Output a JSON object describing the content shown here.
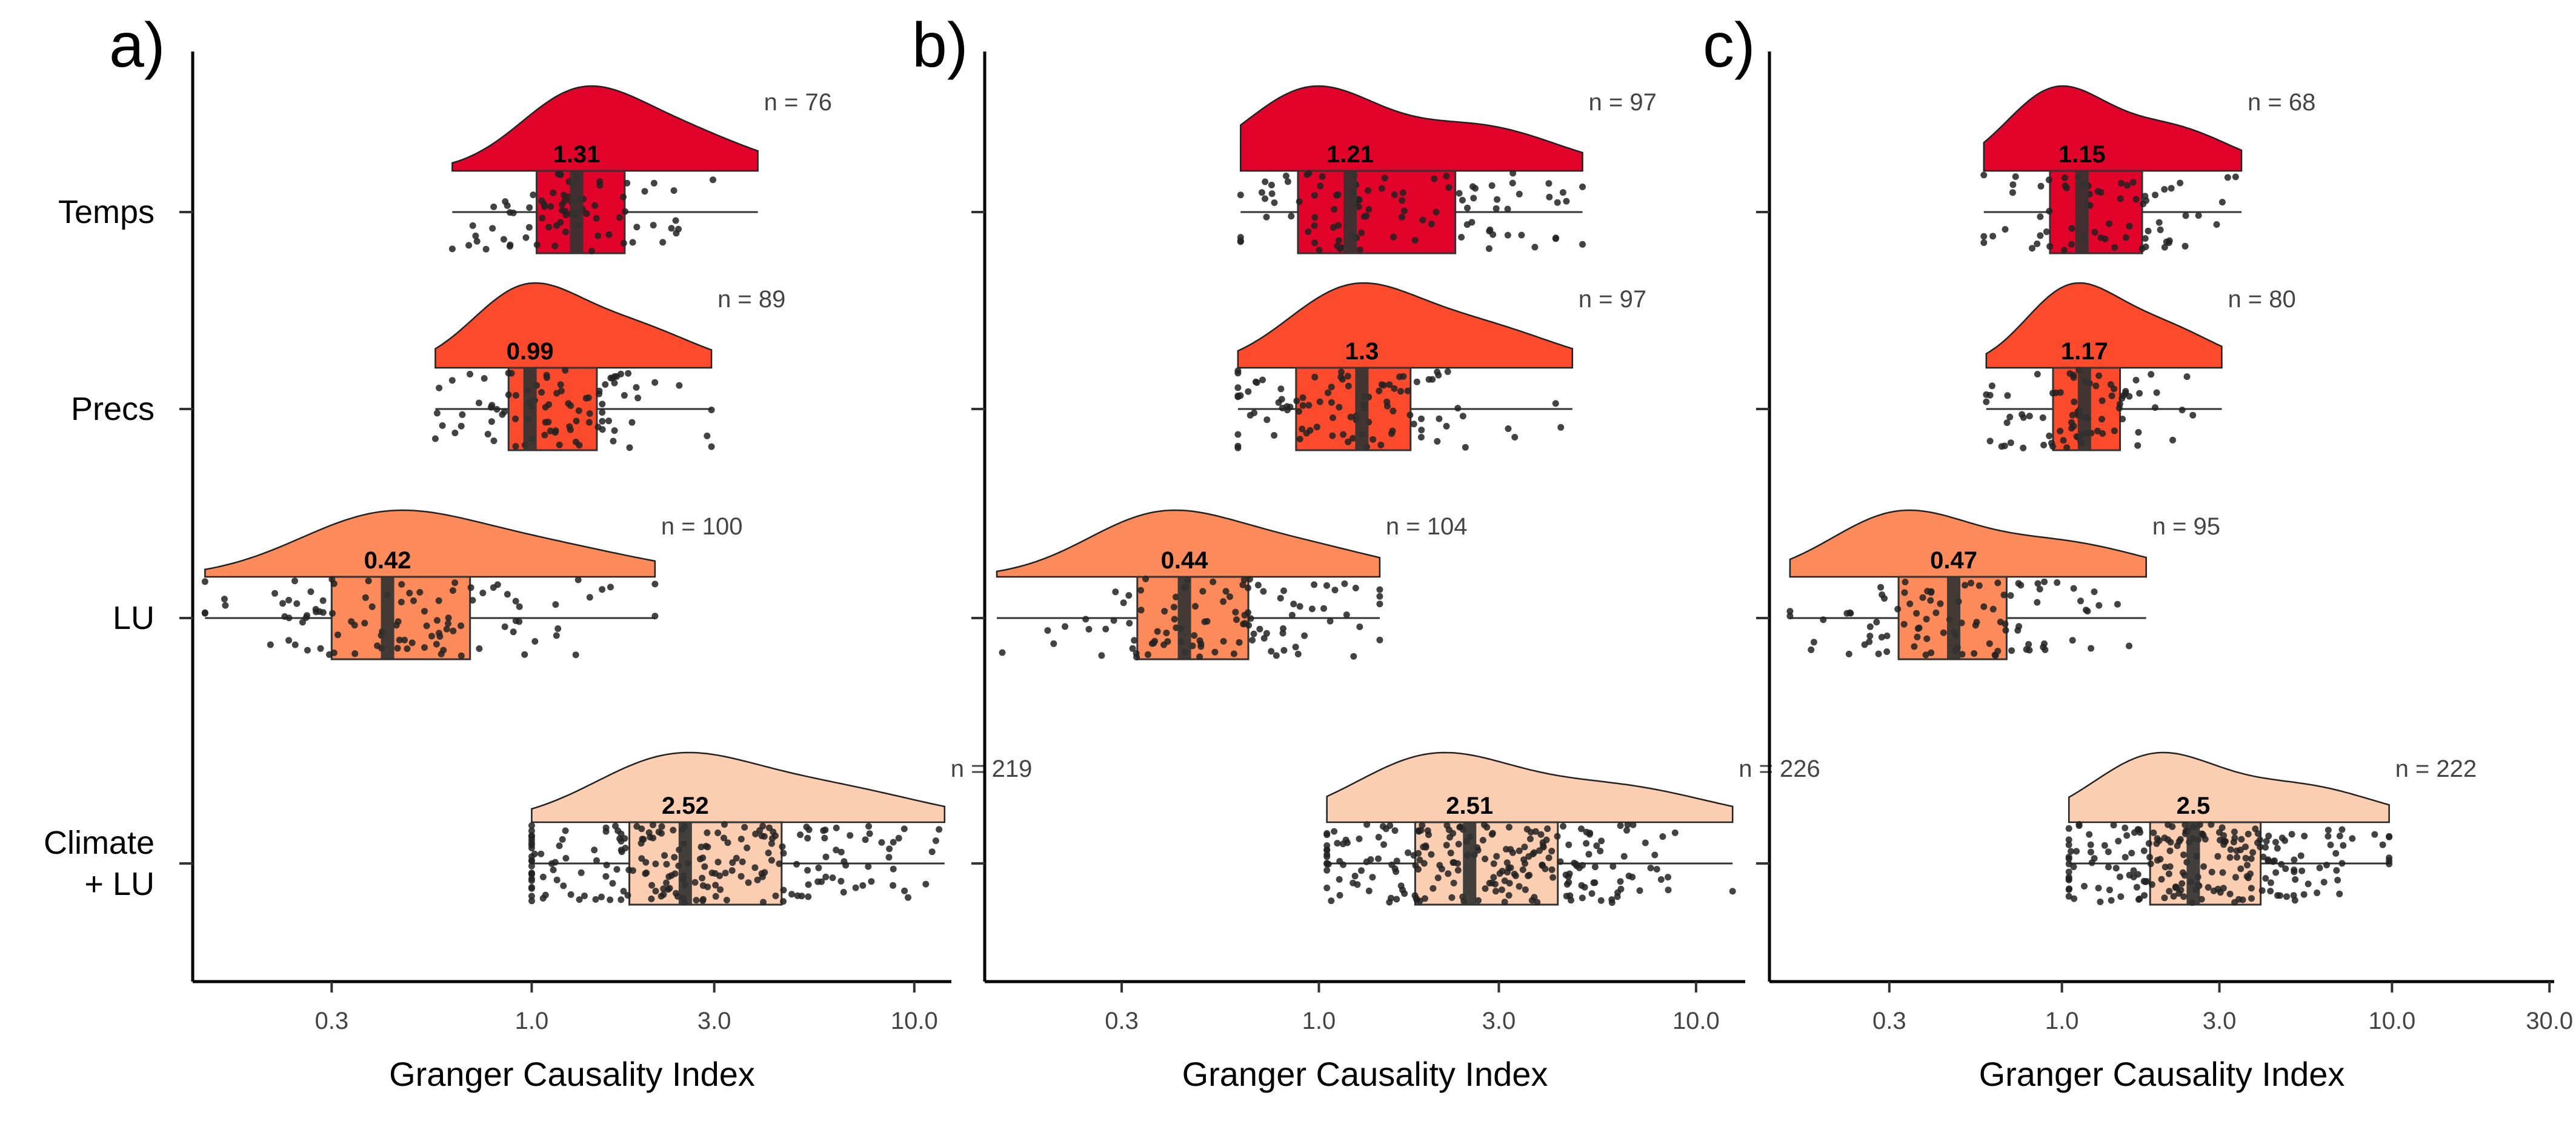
{
  "chart_data": [
    {
      "type": "raincloud",
      "panel_label": "a)",
      "xlabel": "Granger Causality Index",
      "xscale": "log",
      "xlim": [
        0.13,
        12.5
      ],
      "xticks": [
        0.3,
        1.0,
        3.0,
        10.0
      ],
      "xtick_labels": [
        "0.3",
        "1.0",
        "3.0",
        "10.0"
      ],
      "categories": [
        "Temps",
        "Precs",
        "LU",
        "Climate\n+ LU"
      ],
      "series": [
        {
          "median": 1.31,
          "median_label": "1.31",
          "n": 76,
          "n_label": "n = 76",
          "q1": 1.03,
          "q3": 1.75,
          "whisker_low": 0.62,
          "whisker_high": 3.9,
          "peak": 1.3
        },
        {
          "median": 0.99,
          "median_label": "0.99",
          "n": 89,
          "n_label": "n = 89",
          "q1": 0.87,
          "q3": 1.48,
          "whisker_low": 0.56,
          "whisker_high": 2.95,
          "peak": 0.95
        },
        {
          "median": 0.42,
          "median_label": "0.42",
          "n": 100,
          "n_label": "n = 100",
          "q1": 0.3,
          "q3": 0.69,
          "whisker_low": 0.14,
          "whisker_high": 2.1,
          "peak": 0.4
        },
        {
          "median": 2.52,
          "median_label": "2.52",
          "n": 219,
          "n_label": "n = 219",
          "q1": 1.8,
          "q3": 4.5,
          "whisker_low": 1.0,
          "whisker_high": 12.0,
          "peak": 2.3
        }
      ]
    },
    {
      "type": "raincloud",
      "panel_label": "b)",
      "xlabel": "Granger Causality Index",
      "xscale": "log",
      "xlim": [
        0.13,
        13.5
      ],
      "xticks": [
        0.3,
        1.0,
        3.0,
        10.0
      ],
      "xtick_labels": [
        "0.3",
        "1.0",
        "3.0",
        "10.0"
      ],
      "categories": [
        "Temps",
        "Precs",
        "LU",
        "Climate\n+ LU"
      ],
      "series": [
        {
          "median": 1.21,
          "median_label": "1.21",
          "n": 97,
          "n_label": "n = 97",
          "q1": 0.88,
          "q3": 2.3,
          "whisker_low": 0.62,
          "whisker_high": 5.0,
          "peak": 0.95
        },
        {
          "median": 1.3,
          "median_label": "1.3",
          "n": 97,
          "n_label": "n = 97",
          "q1": 0.87,
          "q3": 1.75,
          "whisker_low": 0.61,
          "whisker_high": 4.7,
          "peak": 1.2
        },
        {
          "median": 0.44,
          "median_label": "0.44",
          "n": 104,
          "n_label": "n = 104",
          "q1": 0.33,
          "q3": 0.65,
          "whisker_low": 0.14,
          "whisker_high": 1.45,
          "peak": 0.37
        },
        {
          "median": 2.51,
          "median_label": "2.51",
          "n": 226,
          "n_label": "n = 226",
          "q1": 1.8,
          "q3": 4.3,
          "whisker_low": 1.05,
          "whisker_high": 12.5,
          "peak": 2.0
        }
      ]
    },
    {
      "type": "raincloud",
      "panel_label": "c)",
      "xlabel": "Granger Causality Index",
      "xscale": "log",
      "xlim": [
        0.13,
        31
      ],
      "xticks": [
        0.3,
        1.0,
        3.0,
        10.0,
        30.0
      ],
      "xtick_labels": [
        "0.3",
        "1.0",
        "3.0",
        "10.0",
        "30.0"
      ],
      "categories": [
        "Temps",
        "Precs",
        "LU",
        "Climate\n+ LU"
      ],
      "series": [
        {
          "median": 1.15,
          "median_label": "1.15",
          "n": 68,
          "n_label": "n = 68",
          "q1": 0.92,
          "q3": 1.75,
          "whisker_low": 0.58,
          "whisker_high": 3.5,
          "peak": 0.95
        },
        {
          "median": 1.17,
          "median_label": "1.17",
          "n": 80,
          "n_label": "n = 80",
          "q1": 0.94,
          "q3": 1.5,
          "whisker_low": 0.59,
          "whisker_high": 3.05,
          "peak": 1.05
        },
        {
          "median": 0.47,
          "median_label": "0.47",
          "n": 95,
          "n_label": "n = 95",
          "q1": 0.32,
          "q3": 0.68,
          "whisker_low": 0.15,
          "whisker_high": 1.8,
          "peak": 0.32
        },
        {
          "median": 2.5,
          "median_label": "2.5",
          "n": 222,
          "n_label": "n = 222",
          "q1": 1.85,
          "q3": 4.0,
          "whisker_low": 1.05,
          "whisker_high": 9.8,
          "peak": 1.9
        }
      ]
    }
  ],
  "colors": {
    "temps": "#e2032b",
    "precs": "#fc4a2c",
    "lu": "#fc8a5a",
    "climate_lu": "#fbceb2",
    "median_bar": "#333333",
    "points": "#222222"
  }
}
